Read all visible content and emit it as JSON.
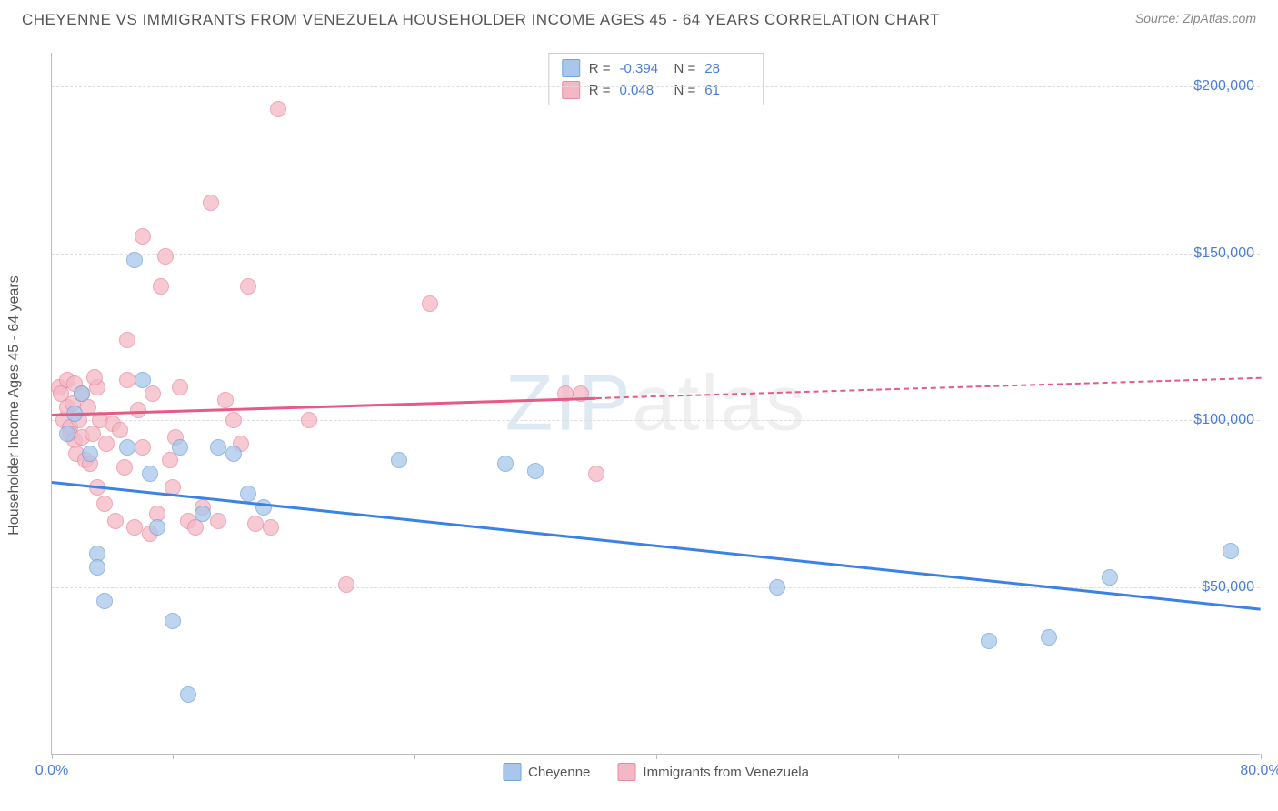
{
  "header": {
    "title": "CHEYENNE VS IMMIGRANTS FROM VENEZUELA HOUSEHOLDER INCOME AGES 45 - 64 YEARS CORRELATION CHART",
    "source": "Source: ZipAtlas.com"
  },
  "watermark": {
    "zip": "ZIP",
    "atlas": "atlas"
  },
  "chart": {
    "type": "scatter",
    "y_axis_label": "Householder Income Ages 45 - 64 years",
    "xlim": [
      0,
      80
    ],
    "ylim": [
      0,
      210000
    ],
    "x_ticks": [
      0,
      8,
      24,
      40,
      56,
      80
    ],
    "x_tick_labels": {
      "0": "0.0%",
      "80": "80.0%"
    },
    "y_gridlines": [
      50000,
      100000,
      150000,
      200000
    ],
    "y_tick_labels": {
      "50000": "$50,000",
      "100000": "$100,000",
      "150000": "$150,000",
      "200000": "$200,000"
    },
    "background_color": "#ffffff",
    "grid_color": "#dddddd",
    "axis_color": "#bbbbbb",
    "tick_label_color": "#4a7dd6",
    "series": [
      {
        "name": "Cheyenne",
        "fill_color": "#a9c7ea",
        "stroke_color": "#6fa3dd",
        "line_color": "#3b82e6",
        "R": "-0.394",
        "N": "28",
        "trend": {
          "x1": 0,
          "y1": 82000,
          "x2": 80,
          "y2": 44000,
          "solid_until_x": 80
        },
        "points": [
          [
            1.0,
            96000
          ],
          [
            1.5,
            102000
          ],
          [
            2.0,
            108000
          ],
          [
            2.5,
            90000
          ],
          [
            3.0,
            60000
          ],
          [
            3.0,
            56000
          ],
          [
            3.5,
            46000
          ],
          [
            5.0,
            92000
          ],
          [
            5.5,
            148000
          ],
          [
            6.0,
            112000
          ],
          [
            6.5,
            84000
          ],
          [
            7.0,
            68000
          ],
          [
            8.0,
            40000
          ],
          [
            8.5,
            92000
          ],
          [
            9.0,
            18000
          ],
          [
            10.0,
            72000
          ],
          [
            11.0,
            92000
          ],
          [
            12.0,
            90000
          ],
          [
            13.0,
            78000
          ],
          [
            14.0,
            74000
          ],
          [
            23.0,
            88000
          ],
          [
            30.0,
            87000
          ],
          [
            32.0,
            85000
          ],
          [
            48.0,
            50000
          ],
          [
            62.0,
            34000
          ],
          [
            66.0,
            35000
          ],
          [
            70.0,
            53000
          ],
          [
            78.0,
            61000
          ]
        ]
      },
      {
        "name": "Immigrants from Venezuela",
        "fill_color": "#f4b8c5",
        "stroke_color": "#e98aa2",
        "line_color": "#e65a85",
        "R": "0.048",
        "N": "61",
        "trend": {
          "x1": 0,
          "y1": 102000,
          "x2": 80,
          "y2": 113000,
          "solid_until_x": 36
        },
        "points": [
          [
            0.5,
            110000
          ],
          [
            0.6,
            108000
          ],
          [
            0.8,
            100000
          ],
          [
            1.0,
            112000
          ],
          [
            1.0,
            104000
          ],
          [
            1.2,
            98000
          ],
          [
            1.2,
            96000
          ],
          [
            1.4,
            105000
          ],
          [
            1.5,
            94000
          ],
          [
            1.6,
            90000
          ],
          [
            1.8,
            100000
          ],
          [
            2.0,
            108000
          ],
          [
            2.0,
            95000
          ],
          [
            2.2,
            88000
          ],
          [
            2.4,
            104000
          ],
          [
            2.5,
            87000
          ],
          [
            2.7,
            96000
          ],
          [
            3.0,
            110000
          ],
          [
            3.0,
            80000
          ],
          [
            3.2,
            100000
          ],
          [
            3.5,
            75000
          ],
          [
            3.6,
            93000
          ],
          [
            4.0,
            99000
          ],
          [
            4.2,
            70000
          ],
          [
            4.5,
            97000
          ],
          [
            5.0,
            112000
          ],
          [
            5.0,
            124000
          ],
          [
            5.5,
            68000
          ],
          [
            5.7,
            103000
          ],
          [
            6.0,
            155000
          ],
          [
            6.0,
            92000
          ],
          [
            6.5,
            66000
          ],
          [
            6.7,
            108000
          ],
          [
            7.0,
            72000
          ],
          [
            7.2,
            140000
          ],
          [
            7.5,
            149000
          ],
          [
            7.8,
            88000
          ],
          [
            8.0,
            80000
          ],
          [
            8.2,
            95000
          ],
          [
            8.5,
            110000
          ],
          [
            9.0,
            70000
          ],
          [
            9.5,
            68000
          ],
          [
            10.0,
            74000
          ],
          [
            10.5,
            165000
          ],
          [
            11.0,
            70000
          ],
          [
            11.5,
            106000
          ],
          [
            12.0,
            100000
          ],
          [
            12.5,
            93000
          ],
          [
            13.0,
            140000
          ],
          [
            13.5,
            69000
          ],
          [
            14.5,
            68000
          ],
          [
            15.0,
            193000
          ],
          [
            17.0,
            100000
          ],
          [
            19.5,
            51000
          ],
          [
            25.0,
            135000
          ],
          [
            34.0,
            108000
          ],
          [
            35.0,
            108000
          ],
          [
            36.0,
            84000
          ],
          [
            1.5,
            111000
          ],
          [
            2.8,
            113000
          ],
          [
            4.8,
            86000
          ]
        ]
      }
    ],
    "bottom_legend": [
      {
        "label": "Cheyenne",
        "fill": "#a9c7ea",
        "stroke": "#6fa3dd"
      },
      {
        "label": "Immigrants from Venezuela",
        "fill": "#f4b8c5",
        "stroke": "#e98aa2"
      }
    ]
  }
}
